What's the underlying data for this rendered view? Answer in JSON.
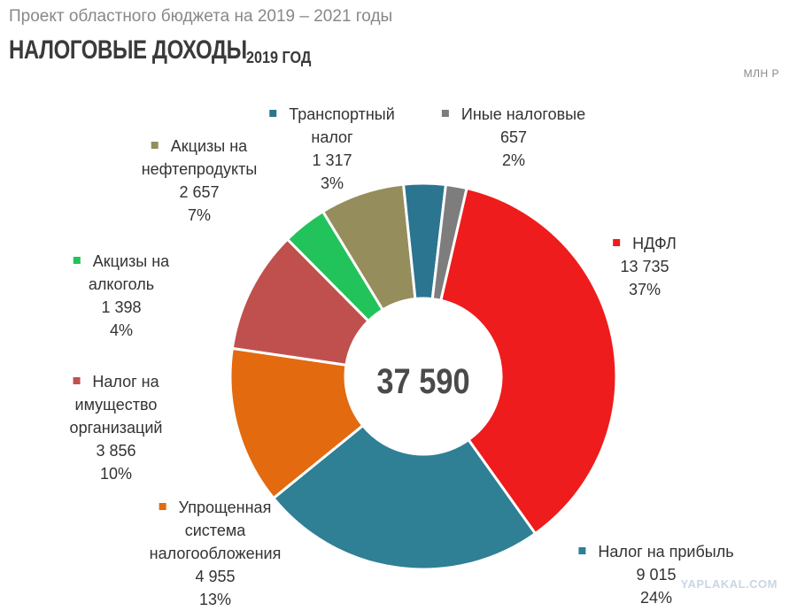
{
  "header": {
    "subtitle": "Проект областного бюджета на 2019 – 2021 годы",
    "title": "НАЛОГОВЫЕ ДОХОДЫ",
    "year": "2019 ГОД",
    "unit": "МЛН Р"
  },
  "watermark": "YAPLAKAL.COM",
  "chart_data": {
    "type": "pie",
    "variant": "donut",
    "title": "НАЛОГОВЫЕ ДОХОДЫ",
    "subtitle": "2019 ГОД",
    "unit": "МЛН Р",
    "total": 37590,
    "total_label": "37 590",
    "legend": "labels around chart",
    "slices": [
      {
        "name": "НДФЛ",
        "name_lines": [
          "НДФЛ"
        ],
        "value": 13735,
        "value_label": "13 735",
        "percent": 37,
        "percent_label": "37%",
        "color": "#ee1c1c"
      },
      {
        "name": "Налог на прибыль",
        "name_lines": [
          "Налог на прибыль"
        ],
        "value": 9015,
        "value_label": "9 015",
        "percent": 24,
        "percent_label": "24%",
        "color": "#2f7f95"
      },
      {
        "name": "Упрощенная система налогообложения",
        "name_lines": [
          "Упрощенная",
          "система",
          "налогообложения"
        ],
        "value": 4955,
        "value_label": "4 955",
        "percent": 13,
        "percent_label": "13%",
        "color": "#e36a0e"
      },
      {
        "name": "Налог на имущество организаций",
        "name_lines": [
          "Налог на",
          "имущество",
          "организаций"
        ],
        "value": 3856,
        "value_label": "3 856",
        "percent": 10,
        "percent_label": "10%",
        "color": "#c0504d"
      },
      {
        "name": "Акцизы на алкоголь",
        "name_lines": [
          "Акцизы на",
          "алкоголь"
        ],
        "value": 1398,
        "value_label": "1 398",
        "percent": 4,
        "percent_label": "4%",
        "color": "#22c35a"
      },
      {
        "name": "Акцизы на нефтепродукты",
        "name_lines": [
          "Акцизы на",
          "нефтепродукты"
        ],
        "value": 2657,
        "value_label": "2 657",
        "percent": 7,
        "percent_label": "7%",
        "color": "#958d5b"
      },
      {
        "name": "Транспортный налог",
        "name_lines": [
          "Транспортный",
          "налог"
        ],
        "value": 1317,
        "value_label": "1 317",
        "percent": 3,
        "percent_label": "3%",
        "color": "#2b7590"
      },
      {
        "name": "Иные налоговые",
        "name_lines": [
          "Иные налоговые"
        ],
        "value": 657,
        "value_label": "657",
        "percent": 2,
        "percent_label": "2%",
        "color": "#7d7d7d"
      }
    ]
  }
}
